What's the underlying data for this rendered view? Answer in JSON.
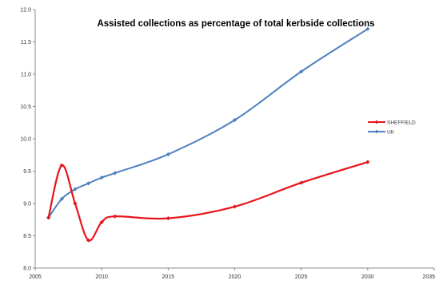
{
  "chart_data": {
    "type": "line",
    "title": "Assisted collections as percentage of total kerbside collections",
    "xlabel": "",
    "ylabel": "",
    "xlim": [
      2005,
      2035
    ],
    "ylim": [
      8.0,
      12.0
    ],
    "x_ticks": [
      "2005",
      "2010",
      "2015",
      "2020",
      "2025",
      "2030",
      "2035"
    ],
    "y_ticks": [
      "8.0",
      "8.5",
      "9.0",
      "9.5",
      "10.0",
      "10.5",
      "11.0",
      "11.5",
      "12.0"
    ],
    "grid": false,
    "legend_position": "right",
    "series": [
      {
        "name": "SHEFFIELD",
        "color": "#e8141b",
        "marker": "diamond",
        "smooth": true,
        "points": [
          [
            2006,
            8.78
          ],
          [
            2007,
            9.59
          ],
          [
            2008,
            9.0
          ],
          [
            2009,
            8.43
          ],
          [
            2010,
            8.71
          ],
          [
            2011,
            8.8
          ],
          [
            2015,
            8.77
          ],
          [
            2020,
            8.95
          ],
          [
            2025,
            9.32
          ],
          [
            2030,
            9.64
          ]
        ]
      },
      {
        "name": "UK",
        "color": "#4f81bd",
        "marker": "diamond",
        "smooth": true,
        "points": [
          [
            2006,
            8.78
          ],
          [
            2007,
            9.07
          ],
          [
            2008,
            9.22
          ],
          [
            2009,
            9.31
          ],
          [
            2010,
            9.4
          ],
          [
            2011,
            9.47
          ],
          [
            2015,
            9.76
          ],
          [
            2020,
            10.29
          ],
          [
            2025,
            11.04
          ],
          [
            2030,
            11.7
          ]
        ]
      }
    ]
  }
}
